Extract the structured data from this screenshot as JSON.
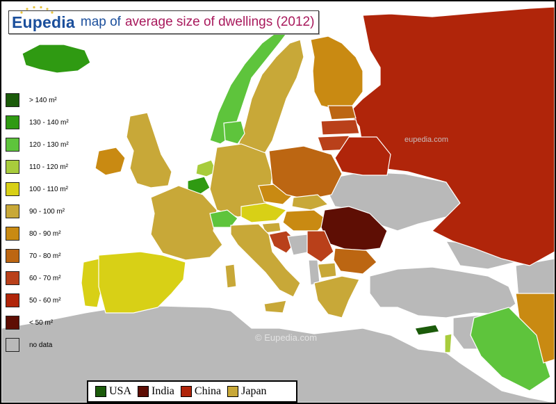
{
  "title": {
    "brand": "Eupedia",
    "prefix": "map of",
    "topic": "average size of dwellings (2012)"
  },
  "colors": {
    "sea": "#ffffff",
    "nodata": "#b9b9b9",
    "gt140": "#1b5b0a",
    "c130_140": "#2f9a12",
    "c120_130": "#5ec43c",
    "c110_120": "#a8cc3c",
    "c100_110": "#d8d016",
    "c90_100": "#c8a838",
    "c80_90": "#c98a12",
    "c70_80": "#bc6612",
    "c60_70": "#b9401a",
    "c50_60": "#b0250a",
    "lt50": "#5e0e04",
    "border": "#ffffff",
    "brand_blue": "#1b4f9c",
    "topic_red": "#a8195c"
  },
  "legend": [
    {
      "label": "> 140 m²",
      "color": "#1b5b0a"
    },
    {
      "label": "130 - 140 m²",
      "color": "#2f9a12"
    },
    {
      "label": "120 - 130 m²",
      "color": "#5ec43c"
    },
    {
      "label": "110 - 120 m²",
      "color": "#a8cc3c"
    },
    {
      "label": "100 - 110 m²",
      "color": "#d8d016"
    },
    {
      "label": "90 - 100 m²",
      "color": "#c8a838"
    },
    {
      "label": "80 - 90 m²",
      "color": "#c98a12"
    },
    {
      "label": "70 - 80 m²",
      "color": "#bc6612"
    },
    {
      "label": "60 - 70 m²",
      "color": "#b9401a"
    },
    {
      "label": "50 - 60 m²",
      "color": "#b0250a"
    },
    {
      "label": "< 50 m²",
      "color": "#5e0e04"
    },
    {
      "label": "no data",
      "color": "#b9b9b9"
    }
  ],
  "comparison": [
    {
      "label": "USA",
      "color": "#1b5b0a"
    },
    {
      "label": "India",
      "color": "#5e0e04"
    },
    {
      "label": "China",
      "color": "#b0250a"
    },
    {
      "label": "Japan",
      "color": "#c8a838"
    }
  ],
  "watermarks": {
    "main": "©  Eupedia.com",
    "russia": "eupedia.com"
  }
}
